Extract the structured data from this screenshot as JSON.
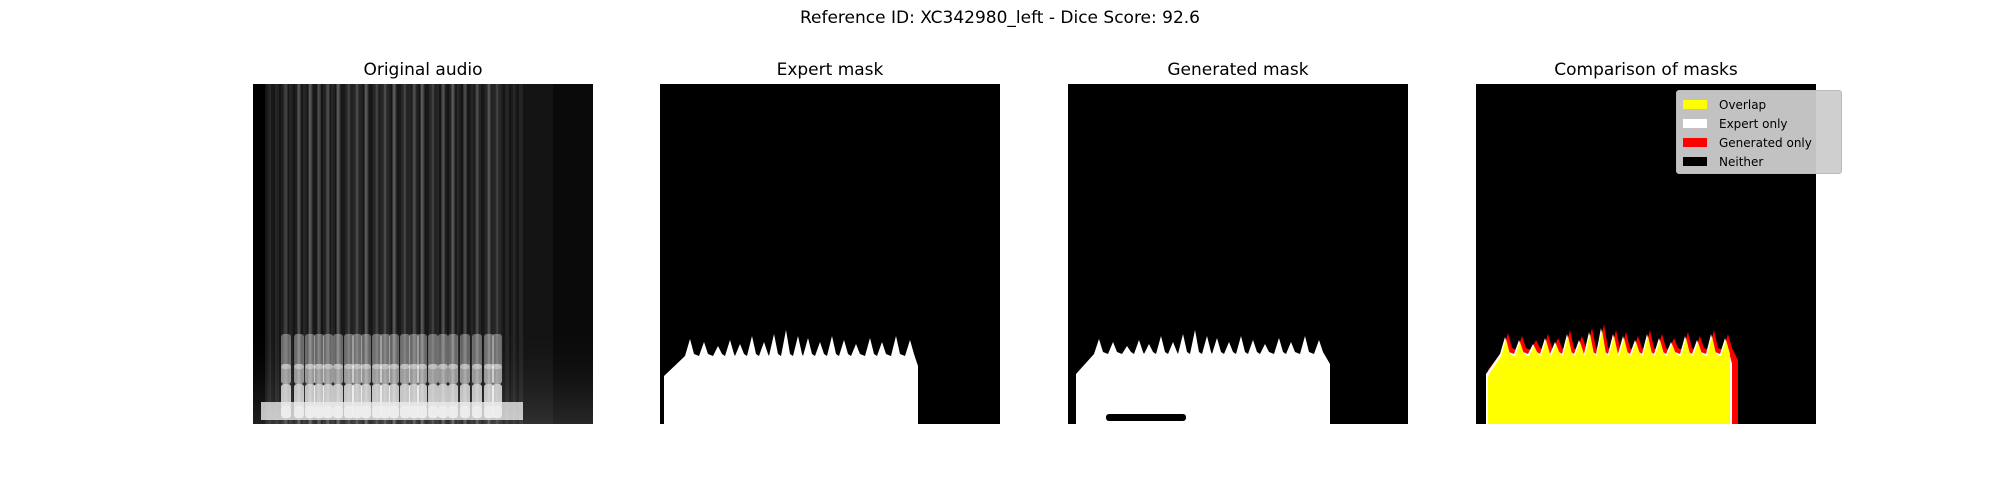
{
  "chart_data": {
    "title": "Reference ID: XC342980_left - Dice Score: 92.6",
    "type": "heatmap",
    "panels": [
      {
        "title": "Original audio",
        "kind": "spectrogram"
      },
      {
        "title": "Expert mask",
        "kind": "mask"
      },
      {
        "title": "Generated mask",
        "kind": "mask"
      },
      {
        "title": "Comparison of masks",
        "kind": "comparison"
      }
    ],
    "legend": {
      "placement": "upper-right",
      "entries": [
        {
          "label": "Overlap",
          "color": "#ffff00"
        },
        {
          "label": "Expert only",
          "color": "#ffffff"
        },
        {
          "label": "Generated only",
          "color": "#ff0000"
        },
        {
          "label": "Neither",
          "color": "#000000"
        }
      ]
    },
    "dice_score": 92.6,
    "grid": false,
    "axes_visible": false
  }
}
